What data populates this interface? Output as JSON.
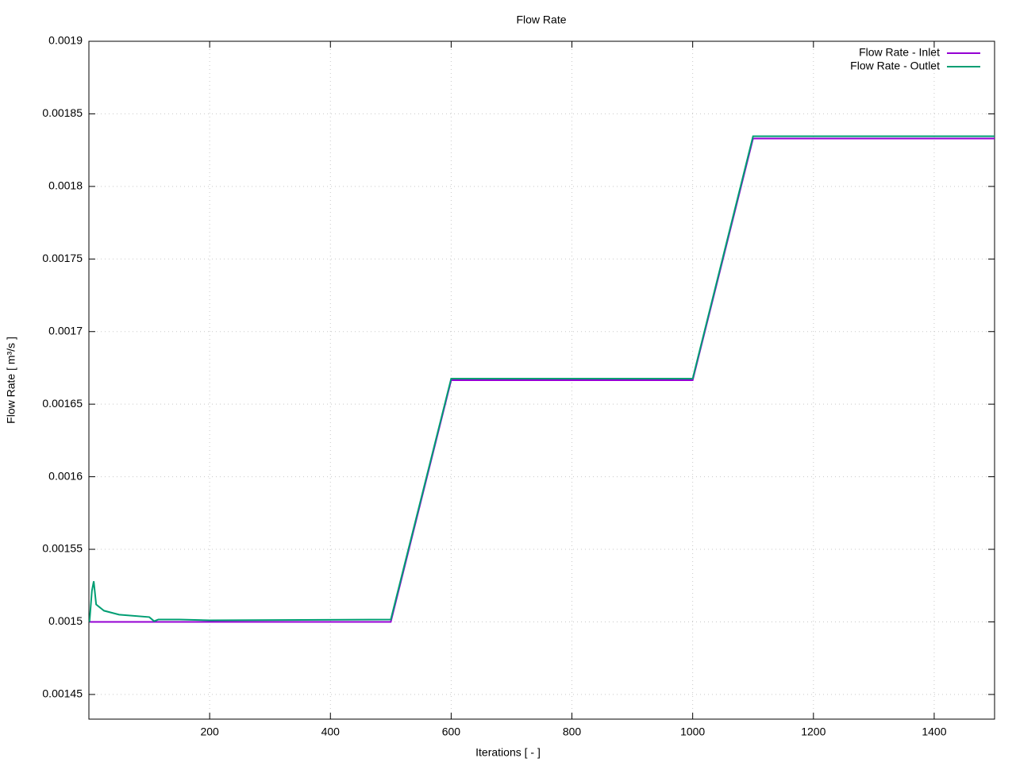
{
  "chart_data": {
    "type": "line",
    "title": "Flow Rate",
    "x_label": "Iterations [ - ]",
    "y_label": "Flow Rate [ m³/s ]",
    "xlim": [
      0,
      1500
    ],
    "ylim": [
      0.001433,
      0.0019
    ],
    "xticks": [
      200,
      400,
      600,
      800,
      1000,
      1200,
      1400
    ],
    "yticks": [
      0.00145,
      0.0015,
      0.00155,
      0.0016,
      0.00165,
      0.0017,
      0.00175,
      0.0018,
      0.00185,
      0.0019
    ],
    "grid": true,
    "legend": "top-right",
    "series": [
      {
        "name": "Flow Rate - Inlet",
        "color": "#9400d3",
        "x": [
          1,
          500,
          600,
          1000,
          1100,
          1500
        ],
        "values": [
          0.0015,
          0.0015,
          0.0016665,
          0.0016665,
          0.001833,
          0.001833
        ]
      },
      {
        "name": "Flow Rate - Outlet",
        "color": "#009e73",
        "x": [
          1,
          5,
          8,
          12,
          18,
          25,
          50,
          100,
          108,
          115,
          150,
          200,
          500,
          600,
          1000,
          1100,
          1500
        ],
        "values": [
          0.0015,
          0.0015214,
          0.001528,
          0.001512,
          0.00151,
          0.0015077,
          0.001505,
          0.0015033,
          0.0015005,
          0.0015016,
          0.0015016,
          0.0015011,
          0.0015016,
          0.0016676,
          0.0016676,
          0.0018346,
          0.0018346
        ]
      }
    ]
  }
}
